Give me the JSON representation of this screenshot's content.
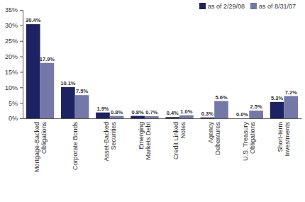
{
  "chart_data": {
    "type": "bar",
    "categories": [
      "Mortgage-Backed Obligations",
      "Corporate Bonds",
      "Asset-Backed Securities",
      "Emerging Markets Debt",
      "Credit Linked Notes",
      "Agency Debentures",
      "U.S. Treasury Obligations",
      "Short-term Investments"
    ],
    "series": [
      {
        "name": "as of 2/29/08",
        "color": "#1c2262",
        "values": [
          30.4,
          10.1,
          1.9,
          0.8,
          0.4,
          0.3,
          0.0,
          5.3
        ],
        "value_labels": [
          "30.4%",
          "10.1%",
          "1.9%",
          "0.8%",
          "0.4%",
          "0.3%",
          "0.0%",
          "5.3%"
        ]
      },
      {
        "name": "as of 8/31/07",
        "color": "#7478a8",
        "values": [
          17.9,
          7.5,
          0.8,
          0.7,
          1.0,
          5.6,
          2.5,
          7.2
        ],
        "value_labels": [
          "17.9%",
          "7.5%",
          "0.8%",
          "0.7%",
          "1.0%",
          "5.6%",
          "2.5%",
          "7.2%"
        ]
      }
    ],
    "ylim": [
      0,
      35
    ],
    "yticks": [
      {
        "value": 0,
        "label": "0%"
      },
      {
        "value": 5,
        "label": "5%"
      },
      {
        "value": 10,
        "label": "10%"
      },
      {
        "value": 15,
        "label": "15%"
      },
      {
        "value": 20,
        "label": "20%"
      },
      {
        "value": 25,
        "label": "25%"
      },
      {
        "value": 30,
        "label": "30%"
      },
      {
        "value": 35,
        "label": "35%"
      }
    ],
    "grid": false,
    "legend": "top-right",
    "data_labels": true
  }
}
